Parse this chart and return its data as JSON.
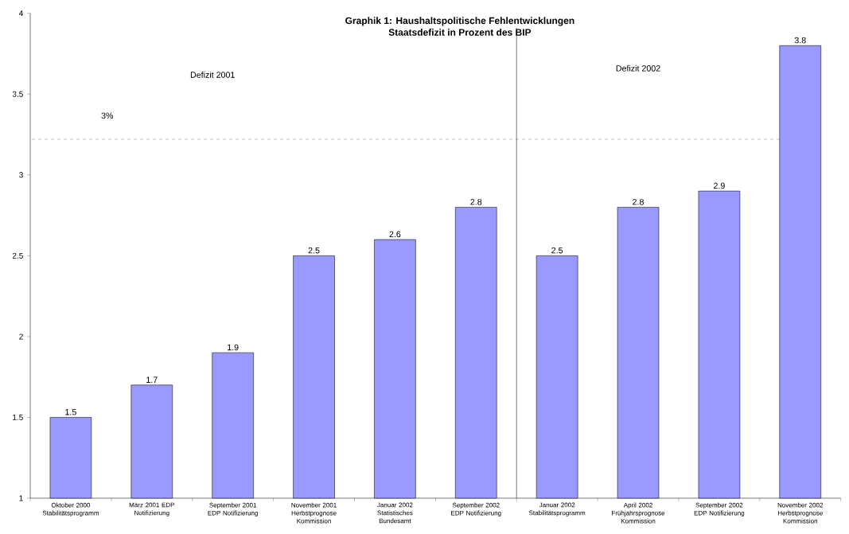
{
  "chart_data": {
    "type": "bar",
    "title": "Graphik 1: Haushaltspolitische Fehlentwicklungen",
    "subtitle": "Staatsdefizit in Prozent des BIP",
    "categories": [
      "Oktober 2000 Stabilitätsprogramm",
      "März 2001 EDP Notifizierung",
      "September 2001 EDP Notifizierung",
      "November 2001 Herbstprognose Kommission",
      "Januar 2002 Statistisches Bundesamt",
      "September 2002 EDP Notifizierung",
      "Januar 2002 Stabilitätsprogramm",
      "April 2002 Frühjahrsprognose Kommission",
      "September 2002 EDP Notifizierung",
      "November 2002 Herbstprognose Kommission"
    ],
    "values": [
      1.5,
      1.7,
      1.9,
      2.5,
      2.6,
      2.8,
      2.5,
      2.8,
      2.9,
      3.8
    ],
    "color": "#9999ff",
    "data_labels": true,
    "ylim": [
      1,
      4
    ],
    "yticks": [
      1,
      1.5,
      2,
      2.5,
      3,
      3.5,
      4
    ],
    "grid": false,
    "ref_lines": [
      {
        "axis": "y",
        "value": 3.22,
        "label": "3%",
        "line_style": "dashed"
      }
    ],
    "annotations": [
      "Defizit 2001",
      "Defizit 2002"
    ]
  }
}
